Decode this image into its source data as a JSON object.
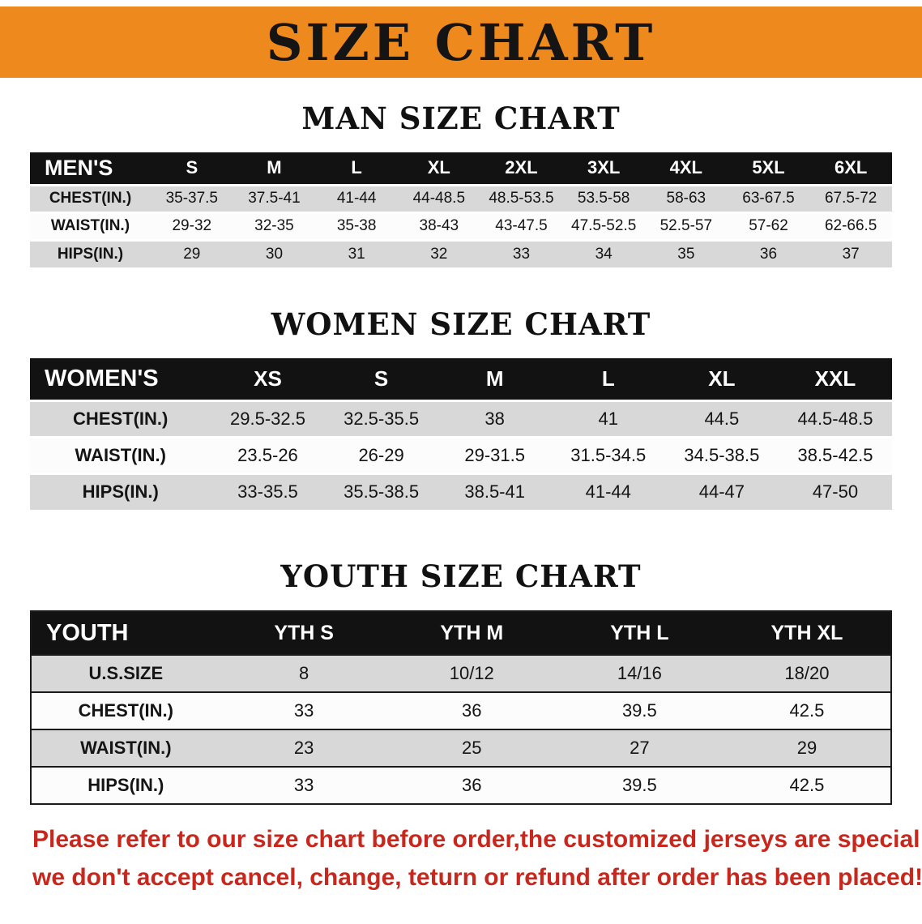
{
  "banner": {
    "title": "SIZE CHART"
  },
  "colors": {
    "banner_bg": "#EE8A1D",
    "banner_text": "#141414",
    "table_header_bg": "#121212",
    "table_header_text": "#FFFFFF",
    "row_stripe": "#D8D8D8",
    "row_plain": "#FCFCFC",
    "table_border": "#1A1A1A",
    "disclaimer_text": "#C8271D"
  },
  "chart_data": [
    {
      "type": "table",
      "title": "MAN SIZE CHART",
      "columns": [
        "MEN'S",
        "S",
        "M",
        "L",
        "XL",
        "2XL",
        "3XL",
        "4XL",
        "5XL",
        "6XL"
      ],
      "rows": [
        [
          "CHEST(IN.)",
          "35-37.5",
          "37.5-41",
          "41-44",
          "44-48.5",
          "48.5-53.5",
          "53.5-58",
          "58-63",
          "63-67.5",
          "67.5-72"
        ],
        [
          "WAIST(IN.)",
          "29-32",
          "32-35",
          "35-38",
          "38-43",
          "43-47.5",
          "47.5-52.5",
          "52.5-57",
          "57-62",
          "62-66.5"
        ],
        [
          "HIPS(IN.)",
          "29",
          "30",
          "31",
          "32",
          "33",
          "34",
          "35",
          "36",
          "37"
        ]
      ]
    },
    {
      "type": "table",
      "title": "WOMEN SIZE CHART",
      "columns": [
        "WOMEN'S",
        "XS",
        "S",
        "M",
        "L",
        "XL",
        "XXL"
      ],
      "rows": [
        [
          "CHEST(IN.)",
          "29.5-32.5",
          "32.5-35.5",
          "38",
          "41",
          "44.5",
          "44.5-48.5"
        ],
        [
          "WAIST(IN.)",
          "23.5-26",
          "26-29",
          "29-31.5",
          "31.5-34.5",
          "34.5-38.5",
          "38.5-42.5"
        ],
        [
          "HIPS(IN.)",
          "33-35.5",
          "35.5-38.5",
          "38.5-41",
          "41-44",
          "44-47",
          "47-50"
        ]
      ]
    },
    {
      "type": "table",
      "title": "YOUTH SIZE CHART",
      "columns": [
        "YOUTH",
        "YTH S",
        "YTH M",
        "YTH L",
        "YTH XL"
      ],
      "rows": [
        [
          "U.S.SIZE",
          "8",
          "10/12",
          "14/16",
          "18/20"
        ],
        [
          "CHEST(IN.)",
          "33",
          "36",
          "39.5",
          "42.5"
        ],
        [
          "WAIST(IN.)",
          "23",
          "25",
          "27",
          "29"
        ],
        [
          "HIPS(IN.)",
          "33",
          "36",
          "39.5",
          "42.5"
        ]
      ]
    }
  ],
  "disclaimer": {
    "line1": "Please refer to our size chart before order,the customized jerseys are special products,",
    "line2": "we don't accept cancel, change, teturn or refund after order has been placed!"
  }
}
